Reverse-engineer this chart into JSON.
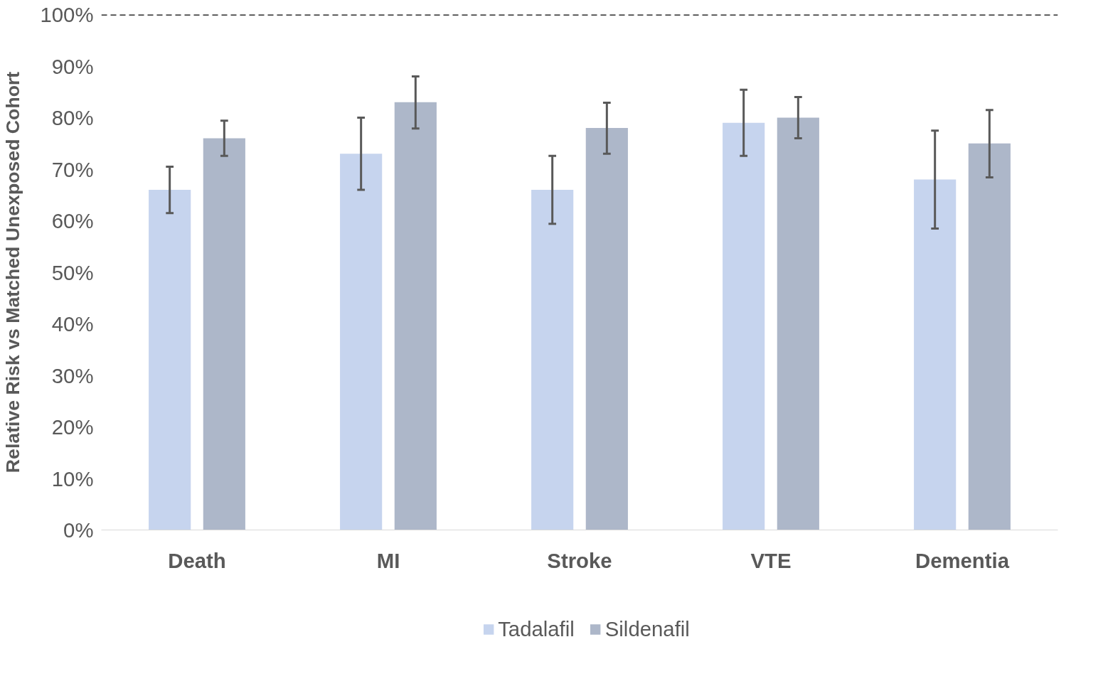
{
  "chart_data": {
    "type": "bar",
    "ylabel": "Relative Risk vs Matched Unexposed Cohort",
    "categories": [
      "Death",
      "MI",
      "Stroke",
      "VTE",
      "Dementia"
    ],
    "series": [
      {
        "name": "Tadalafil",
        "color": "#c6d4ee",
        "values": [
          66,
          73,
          66,
          79,
          68
        ],
        "errors": [
          [
            61.5,
            70.5
          ],
          [
            66,
            80
          ],
          [
            59.4,
            72.6
          ],
          [
            72.6,
            85.4
          ],
          [
            58.5,
            77.5
          ]
        ]
      },
      {
        "name": "Sildenafil",
        "color": "#adb7c9",
        "values": [
          76,
          83,
          78,
          80,
          75
        ],
        "errors": [
          [
            72.6,
            79.4
          ],
          [
            77.9,
            88
          ],
          [
            73,
            82.9
          ],
          [
            76,
            84
          ],
          [
            68.4,
            81.5
          ]
        ]
      }
    ],
    "ylim": [
      0,
      100
    ],
    "yticks": [
      {
        "value": 0,
        "label": "0%"
      },
      {
        "value": 10,
        "label": "10%"
      },
      {
        "value": 20,
        "label": "20%"
      },
      {
        "value": 30,
        "label": "30%"
      },
      {
        "value": 40,
        "label": "40%"
      },
      {
        "value": 50,
        "label": "50%"
      },
      {
        "value": 60,
        "label": "60%"
      },
      {
        "value": 70,
        "label": "70%"
      },
      {
        "value": 80,
        "label": "80%"
      },
      {
        "value": 90,
        "label": "90%"
      },
      {
        "value": 100,
        "label": "100%"
      }
    ],
    "ref_lines": [
      {
        "axis": "y",
        "value": 100,
        "color": "#000000",
        "line_style": "dashed"
      }
    ],
    "grid": false,
    "legend": "bottom"
  }
}
